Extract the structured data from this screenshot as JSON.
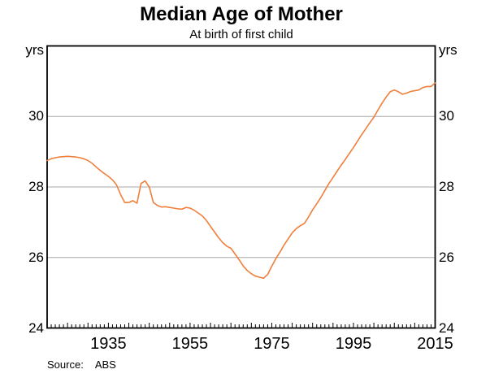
{
  "header": {
    "title": "Median Age of Mother",
    "subtitle": "At birth of first child"
  },
  "axes": {
    "y_unit_left": "yrs",
    "y_unit_right": "yrs"
  },
  "footer": {
    "source_label": "Source:",
    "source_value": "ABS"
  },
  "colors": {
    "line": "#f07f3c",
    "grid": "#a8a8a8",
    "frame": "#000000",
    "text": "#000000"
  },
  "chart_data": {
    "type": "line",
    "title": "Median Age of Mother",
    "subtitle": "At birth of first child",
    "ylabel": "yrs",
    "xlabel": "",
    "xlim": [
      1920,
      2015
    ],
    "ylim": [
      24,
      32
    ],
    "y_tick_values": [
      30,
      28,
      26,
      24
    ],
    "y_gridlines": [
      26,
      28,
      30
    ],
    "x_tick_labels": [
      1935,
      1955,
      1975,
      1995,
      2015
    ],
    "x_minor_tick_step": 1,
    "x_major_tick_step": 5,
    "grid": "horizontal",
    "legend": "none",
    "source": "ABS",
    "series": [
      {
        "name": "Median age of mother at birth of first child",
        "color": "#f07f3c",
        "x": [
          1920,
          1921,
          1922,
          1923,
          1924,
          1925,
          1926,
          1927,
          1928,
          1929,
          1930,
          1931,
          1932,
          1933,
          1934,
          1935,
          1936,
          1937,
          1938,
          1939,
          1940,
          1941,
          1942,
          1943,
          1944,
          1945,
          1946,
          1947,
          1948,
          1949,
          1950,
          1951,
          1952,
          1953,
          1954,
          1955,
          1956,
          1957,
          1958,
          1959,
          1960,
          1961,
          1962,
          1963,
          1964,
          1965,
          1966,
          1967,
          1968,
          1969,
          1970,
          1971,
          1972,
          1973,
          1974,
          1975,
          1976,
          1977,
          1978,
          1979,
          1980,
          1981,
          1982,
          1983,
          1984,
          1985,
          1986,
          1987,
          1988,
          1989,
          1990,
          1991,
          1992,
          1993,
          1994,
          1995,
          1996,
          1997,
          1998,
          1999,
          2000,
          2001,
          2002,
          2003,
          2004,
          2005,
          2006,
          2007,
          2008,
          2009,
          2010,
          2011,
          2012,
          2013,
          2014,
          2015
        ],
        "values": [
          28.75,
          28.8,
          28.83,
          28.85,
          28.86,
          28.87,
          28.86,
          28.85,
          28.83,
          28.8,
          28.75,
          28.67,
          28.57,
          28.47,
          28.38,
          28.3,
          28.2,
          28.06,
          27.78,
          27.56,
          27.56,
          27.61,
          27.54,
          28.1,
          28.17,
          28.0,
          27.56,
          27.48,
          27.43,
          27.44,
          27.42,
          27.4,
          27.38,
          27.37,
          27.42,
          27.4,
          27.34,
          27.26,
          27.18,
          27.05,
          26.88,
          26.72,
          26.56,
          26.42,
          26.32,
          26.26,
          26.1,
          25.94,
          25.76,
          25.63,
          25.54,
          25.47,
          25.44,
          25.41,
          25.52,
          25.75,
          25.97,
          26.15,
          26.35,
          26.53,
          26.7,
          26.82,
          26.9,
          26.97,
          27.15,
          27.35,
          27.52,
          27.7,
          27.9,
          28.1,
          28.27,
          28.45,
          28.62,
          28.78,
          28.95,
          29.12,
          29.3,
          29.48,
          29.65,
          29.82,
          29.98,
          30.18,
          30.38,
          30.55,
          30.7,
          30.75,
          30.7,
          30.63,
          30.66,
          30.71,
          30.73,
          30.75,
          30.82,
          30.85,
          30.85,
          30.95
        ]
      }
    ]
  }
}
